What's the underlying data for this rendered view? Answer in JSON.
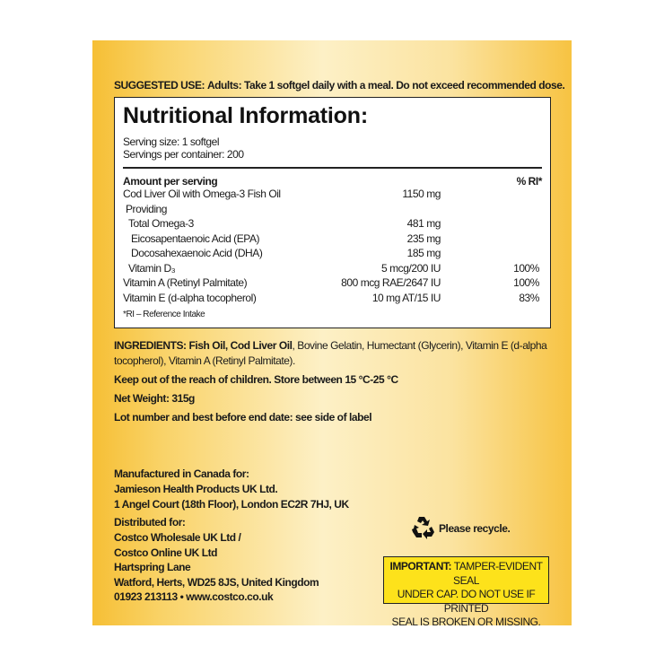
{
  "suggested_use": {
    "label": "SUGGESTED USE:",
    "text": "Adults: Take 1 softgel daily with a meal. Do not exceed recommended dose."
  },
  "nutrition": {
    "title": "Nutritional Information:",
    "serving_size": "Serving size: 1 softgel",
    "servings_per_container": "Servings per container: 200",
    "header_amount": "Amount per serving",
    "header_ri": "% RI*",
    "rows": [
      {
        "name": "Cod Liver Oil with Omega-3 Fish Oil",
        "amount": "1150 mg",
        "ri": ""
      },
      {
        "name": "Providing",
        "amount": "",
        "ri": ""
      },
      {
        "name": "Total Omega-3",
        "amount": "481 mg",
        "ri": ""
      },
      {
        "name": "Eicosapentaenoic Acid (EPA)",
        "amount": "235 mg",
        "ri": ""
      },
      {
        "name": "Docosahexaenoic Acid (DHA)",
        "amount": "185 mg",
        "ri": ""
      },
      {
        "name": "Vitamin D₃",
        "amount": "5 mcg/200 IU",
        "ri": "100%"
      },
      {
        "name": "Vitamin A (Retinyl Palmitate)",
        "amount": "800 mcg RAE/2647 IU",
        "ri": "100%"
      },
      {
        "name": "Vitamin E (d-alpha tocopherol)",
        "amount": "10 mg AT/15 IU",
        "ri": "83%"
      }
    ],
    "footnote": "*RI – Reference Intake"
  },
  "ingredients": {
    "label": "INGREDIENTS:",
    "bold_part": "Fish Oil, Cod Liver Oil",
    "line1_rest": ", Bovine Gelatin, Humectant (Glycerin), Vitamin E (d-alpha",
    "line2": "tocopherol), Vitamin A (Retinyl Palmitate)."
  },
  "storage": "Keep out of the reach of children. Store between 15 °C-25 °C",
  "net_weight": "Net Weight: 315g",
  "lot": "Lot number and best before end date: see side of label",
  "manufacturer": [
    "Manufactured in Canada for:",
    "Jamieson Health Products UK Ltd.",
    "1 Angel Court (18th Floor), London EC2R 7HJ, UK"
  ],
  "distributor": [
    "Distributed for:",
    "Costco Wholesale UK Ltd /",
    "Costco Online UK Ltd",
    "Hartspring Lane",
    "Watford, Herts, WD25 8JS, United Kingdom",
    "01923 213113 • www.costco.co.uk"
  ],
  "recycle": {
    "icon": "recycle-icon",
    "text": "Please recycle."
  },
  "seal_warning": {
    "label": "IMPORTANT:",
    "lines": [
      "TAMPER-EVIDENT SEAL",
      "UNDER CAP. DO NOT USE IF PRINTED",
      "SEAL IS BROKEN OR MISSING."
    ]
  },
  "colors": {
    "label_edge": "#f6bf35",
    "label_center": "#fdf0c6",
    "seal_bg": "#fde21b"
  }
}
